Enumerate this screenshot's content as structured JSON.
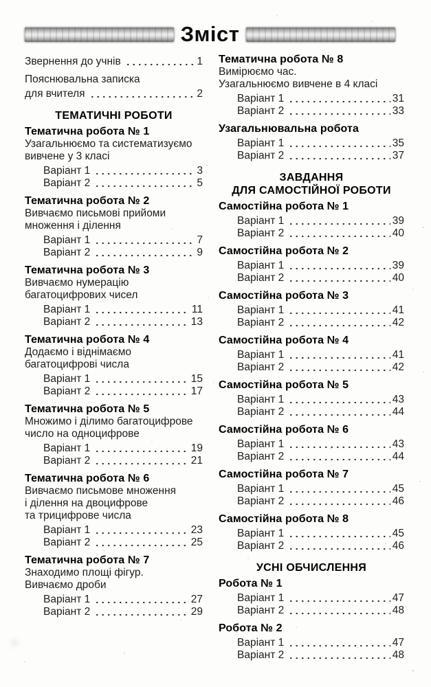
{
  "header": {
    "title": "Зміст"
  },
  "columns": [
    {
      "side": "left",
      "blocks": [
        {
          "items": [
            {
              "label": "Звернення до учнів",
              "page": "1",
              "flush": true
            }
          ]
        },
        {
          "desc": [
            "Пояснювальна записка"
          ],
          "items": [
            {
              "label": "для вчителя",
              "page": "2",
              "flush": true
            }
          ]
        },
        {
          "section": [
            "ТЕМАТИЧНІ РОБОТИ"
          ]
        },
        {
          "heading": "Тематична робота № 1",
          "desc": [
            "Узагальнюємо та систематизуємо",
            "вивчене у 3 класі"
          ],
          "items": [
            {
              "label": "Варіант 1",
              "page": "3"
            },
            {
              "label": "Варіант 2",
              "page": "5"
            }
          ]
        },
        {
          "heading": "Тематична робота № 2",
          "desc": [
            "Вивчаємо письмові прийоми",
            "множення і ділення"
          ],
          "items": [
            {
              "label": "Варіант 1",
              "page": "7"
            },
            {
              "label": "Варіант 2",
              "page": "9"
            }
          ]
        },
        {
          "heading": "Тематична робота № 3",
          "desc": [
            "Вивчаємо нумерацію",
            "багатоцифрових чисел"
          ],
          "items": [
            {
              "label": "Варіант 1",
              "page": "11"
            },
            {
              "label": "Варіант 2",
              "page": "13"
            }
          ]
        },
        {
          "heading": "Тематична робота № 4",
          "desc": [
            "Додаємо і віднімаємо",
            "багатоцифрові числа"
          ],
          "items": [
            {
              "label": "Варіант 1",
              "page": "15"
            },
            {
              "label": "Варіант 2",
              "page": "17"
            }
          ]
        },
        {
          "heading": "Тематична робота № 5",
          "desc": [
            "Множимо і ділимо багатоцифрове",
            "число на одноцифрове"
          ],
          "items": [
            {
              "label": "Варіант 1",
              "page": "19"
            },
            {
              "label": "Варіант 2",
              "page": "21"
            }
          ]
        },
        {
          "heading": "Тематична робота № 6",
          "desc": [
            "Вивчаємо письмове множення",
            "і ділення на двоцифрове",
            "та трицифрове числа"
          ],
          "items": [
            {
              "label": "Варіант 1",
              "page": "23"
            },
            {
              "label": "Варіант 2",
              "page": "25"
            }
          ]
        },
        {
          "heading": "Тематична робота № 7",
          "desc": [
            "Знаходимо площі фігур.",
            "Вивчаємо дроби"
          ],
          "items": [
            {
              "label": "Варіант 1",
              "page": "27"
            },
            {
              "label": "Варіант 2",
              "page": "29"
            }
          ]
        }
      ]
    },
    {
      "side": "right",
      "blocks": [
        {
          "heading": "Тематична робота № 8",
          "desc": [
            "Вимірюємо час.",
            "Узагальнюємо вивчене в 4 класі"
          ],
          "items": [
            {
              "label": "Варіант 1",
              "page": "31"
            },
            {
              "label": "Варіант 2",
              "page": "33"
            }
          ]
        },
        {
          "heading": "Узагальнювальна робота",
          "items": [
            {
              "label": "Варіант 1",
              "page": "35"
            },
            {
              "label": "Варіант 2",
              "page": "37"
            }
          ]
        },
        {
          "section": [
            "ЗАВДАННЯ",
            "ДЛЯ САМОСТІЙНОЇ РОБОТИ"
          ]
        },
        {
          "heading": "Самостійна робота № 1",
          "items": [
            {
              "label": "Варіант 1",
              "page": "39"
            },
            {
              "label": "Варіант 2",
              "page": "40"
            }
          ]
        },
        {
          "heading": "Самостійна робота № 2",
          "items": [
            {
              "label": "Варіант 1",
              "page": "39"
            },
            {
              "label": "Варіант 2",
              "page": "40"
            }
          ]
        },
        {
          "heading": "Самостійна робота № 3",
          "items": [
            {
              "label": "Варіант 1",
              "page": "41"
            },
            {
              "label": "Варіант 2",
              "page": "42"
            }
          ]
        },
        {
          "heading": "Самостійна робота № 4",
          "items": [
            {
              "label": "Варіант 1",
              "page": "41"
            },
            {
              "label": "Варіант 2",
              "page": "42"
            }
          ]
        },
        {
          "heading": "Самостійна робота № 5",
          "items": [
            {
              "label": "Варіант 1",
              "page": "43"
            },
            {
              "label": "Варіант 2",
              "page": "44"
            }
          ]
        },
        {
          "heading": "Самостійна робота № 6",
          "items": [
            {
              "label": "Варіант 1",
              "page": "43"
            },
            {
              "label": "Варіант 2",
              "page": "44"
            }
          ]
        },
        {
          "heading": "Самостійна робота № 7",
          "items": [
            {
              "label": "Варіант 1",
              "page": "45"
            },
            {
              "label": "Варіант 2",
              "page": "46"
            }
          ]
        },
        {
          "heading": "Самостійна робота № 8",
          "items": [
            {
              "label": "Варіант 1",
              "page": "45"
            },
            {
              "label": "Варіант 2",
              "page": "46"
            }
          ]
        },
        {
          "section": [
            "УСНІ ОБЧИСЛЕННЯ"
          ]
        },
        {
          "heading": "Робота № 1",
          "items": [
            {
              "label": "Варіант 1",
              "page": "47"
            },
            {
              "label": "Варіант 2",
              "page": "48"
            }
          ]
        },
        {
          "heading": "Робота № 2",
          "items": [
            {
              "label": "Варіант 1",
              "page": "47"
            },
            {
              "label": "Варіант 2",
              "page": "48"
            }
          ]
        }
      ]
    }
  ]
}
